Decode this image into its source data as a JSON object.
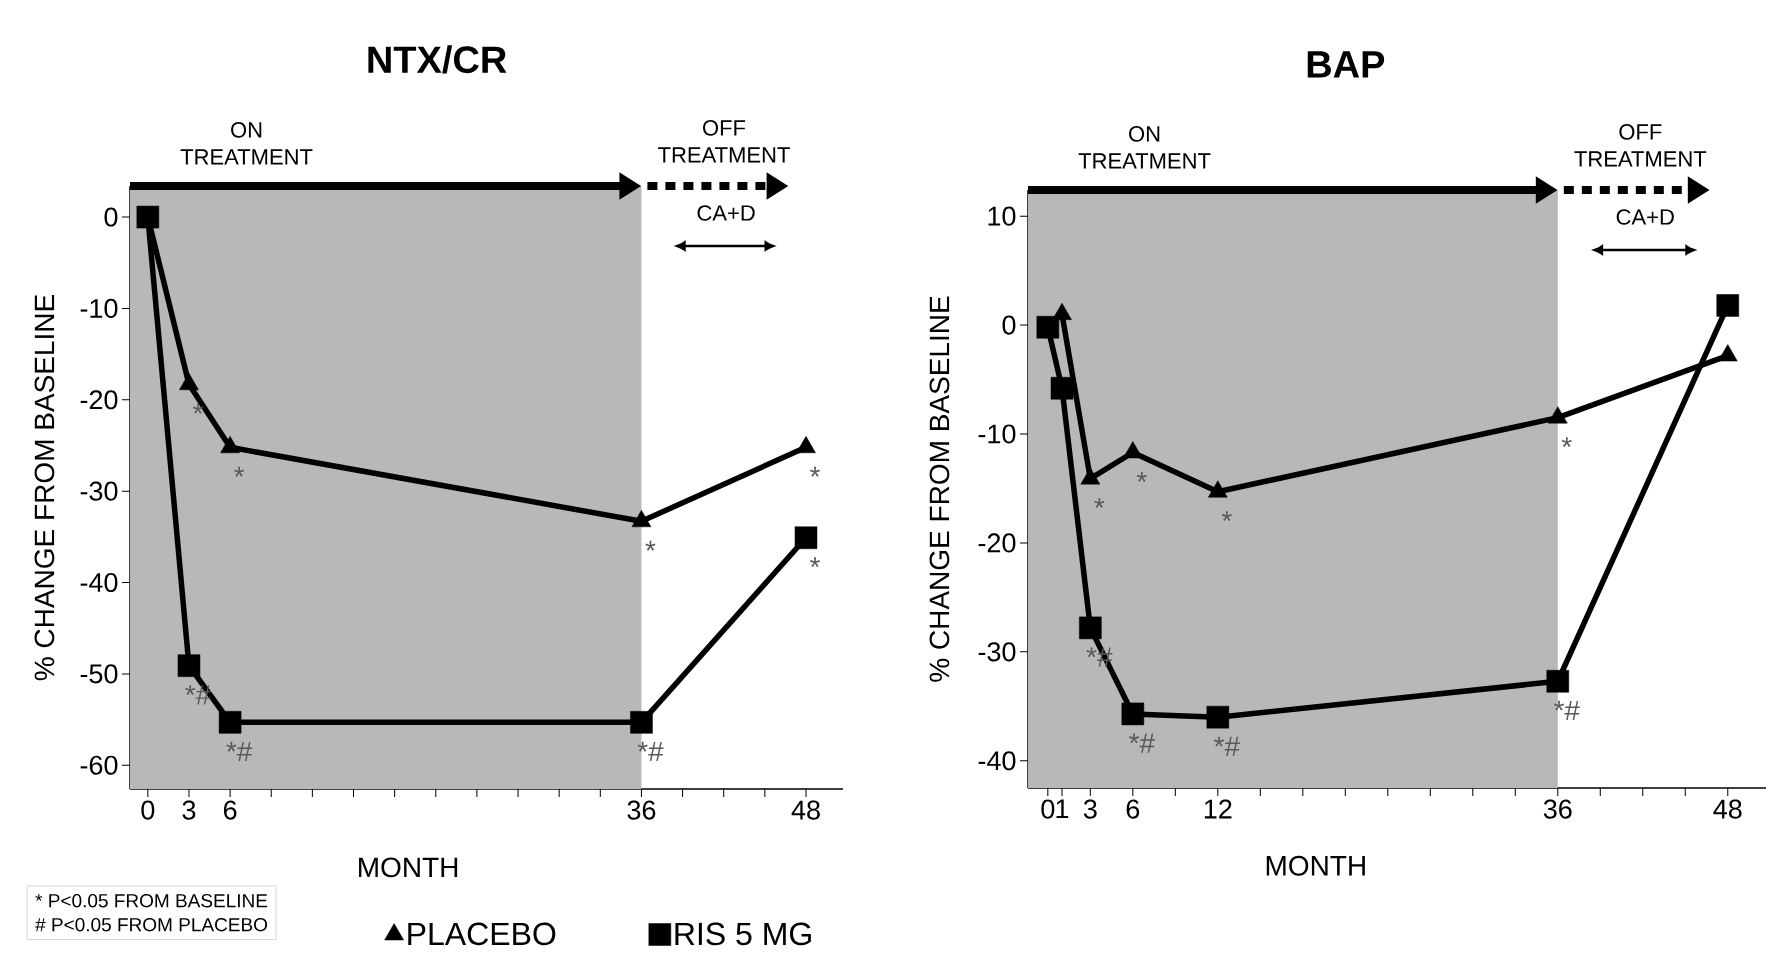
{
  "chart_data": [
    {
      "type": "line",
      "title": "NTX/CR",
      "xlabel": "MONTH",
      "ylabel": "% CHANGE FROM BASELINE",
      "line_style": "solid",
      "legend": false,
      "xlim": [
        -1.3,
        50.7
      ],
      "ylim": [
        -62.6,
        3.4
      ],
      "xticks": [
        0,
        3,
        6,
        {
          "value": 9,
          "label": null
        },
        {
          "value": 12,
          "label": null
        },
        {
          "value": 15,
          "label": null
        },
        {
          "value": 18,
          "label": null
        },
        {
          "value": 21,
          "label": null
        },
        {
          "value": 24,
          "label": null
        },
        {
          "value": 27,
          "label": null
        },
        {
          "value": 30,
          "label": null
        },
        {
          "value": 33,
          "label": null
        },
        36,
        {
          "value": 39,
          "label": null
        },
        {
          "value": 42,
          "label": null
        },
        {
          "value": 45,
          "label": null
        },
        48
      ],
      "yticks": [
        0,
        -10,
        -20,
        -30,
        -40,
        -50,
        -60
      ],
      "series": [
        {
          "color": "#000000",
          "marker": "square",
          "x": [
            0,
            3,
            6,
            36,
            48
          ],
          "values": [
            0,
            -49.1,
            -55.3,
            -55.3,
            -35.1
          ]
        },
        {
          "color": "#000000",
          "marker": "triangle",
          "x": [
            0,
            3,
            6,
            36,
            48
          ],
          "values": [
            0,
            -18.3,
            -25.2,
            -33.3,
            -25.2
          ]
        }
      ],
      "bands": [
        {
          "axis": "x",
          "from": -1.3,
          "to": 36,
          "label": "ON TREATMENT",
          "color": "#b8b8b8"
        }
      ],
      "annotations": [
        "OFF TREATMENT",
        "CA+D",
        "* P<0.05 FROM BASELINE",
        "# P<0.05 FROM PLACEBO",
        {
          "text": "*",
          "x": 3,
          "y": -18.3
        },
        {
          "text": "*",
          "x": 6,
          "y": -25.2
        },
        {
          "text": "*",
          "x": 36,
          "y": -33.3
        },
        {
          "text": "*",
          "x": 48,
          "y": -25.2
        },
        {
          "text": "*#",
          "x": 3,
          "y": -49.1
        },
        {
          "text": "*#",
          "x": 6,
          "y": -55.3
        },
        {
          "text": "*#",
          "x": 36,
          "y": -55.3
        },
        {
          "text": "*",
          "x": 48,
          "y": -35.1
        }
      ]
    },
    {
      "type": "line",
      "title": "BAP",
      "xlabel": "MONTH",
      "ylabel": "% CHANGE FROM BASELINE",
      "line_style": "solid",
      "legend": "bottom",
      "xlim": [
        -1.4,
        50.7
      ],
      "ylim": [
        -42.5,
        12.4
      ],
      "xticks": [
        0,
        1,
        3,
        6,
        {
          "value": 9,
          "label": null
        },
        12,
        {
          "value": 15,
          "label": null
        },
        {
          "value": 18,
          "label": null
        },
        {
          "value": 21,
          "label": null
        },
        {
          "value": 24,
          "label": null
        },
        {
          "value": 27,
          "label": null
        },
        {
          "value": 30,
          "label": null
        },
        {
          "value": 33,
          "label": null
        },
        36,
        {
          "value": 39,
          "label": null
        },
        {
          "value": 42,
          "label": null
        },
        {
          "value": 45,
          "label": null
        },
        48
      ],
      "yticks": [
        10,
        0,
        -10,
        -20,
        -30,
        -40
      ],
      "series": [
        {
          "name": "PLACEBO",
          "color": "#000000",
          "marker": "triangle",
          "x": [
            1,
            3,
            6,
            12,
            36,
            48
          ],
          "values": [
            1,
            -14.1,
            -11.7,
            -15.3,
            -8.5,
            -2.8
          ]
        },
        {
          "name": "RIS 5 MG",
          "color": "#000000",
          "marker": "square",
          "x": [
            0,
            1,
            3,
            6,
            12,
            36,
            48
          ],
          "values": [
            -0.2,
            -5.8,
            -27.8,
            -35.7,
            -36,
            -32.7,
            1.8
          ]
        }
      ],
      "bands": [
        {
          "axis": "x",
          "from": -1.4,
          "to": 36,
          "label": "ON TREATMENT",
          "color": "#b8b8b8"
        }
      ],
      "annotations": [
        "OFF TREATMENT",
        "CA+D",
        {
          "text": "*",
          "x": 3,
          "y": -14.1
        },
        {
          "text": "*",
          "x": 6,
          "y": -11.7
        },
        {
          "text": "*",
          "x": 12,
          "y": -15.3
        },
        {
          "text": "*",
          "x": 36,
          "y": -8.5
        },
        {
          "text": "*#",
          "x": 3,
          "y": -27.8
        },
        {
          "text": "*#",
          "x": 6,
          "y": -35.7
        },
        {
          "text": "*#",
          "x": 12,
          "y": -36
        },
        {
          "text": "*#",
          "x": 36,
          "y": -32.7
        }
      ]
    }
  ]
}
